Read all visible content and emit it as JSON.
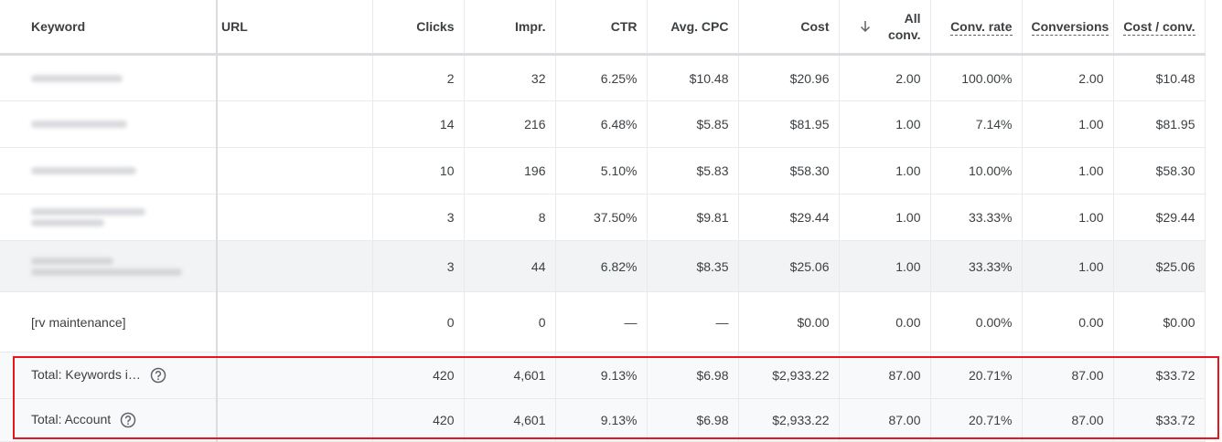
{
  "table": {
    "columns": [
      "Keyword",
      "URL",
      "Clicks",
      "Impr.",
      "CTR",
      "Avg. CPC",
      "Cost",
      "All conv.",
      "Conv. rate",
      "Conversions",
      "Cost / conv."
    ],
    "rows": [
      {
        "cells": [
          "2",
          "32",
          "6.25%",
          "$10.48",
          "$20.96",
          "2.00",
          "100.00%",
          "2.00",
          "$10.48"
        ]
      },
      {
        "cells": [
          "14",
          "216",
          "6.48%",
          "$5.85",
          "$81.95",
          "1.00",
          "7.14%",
          "1.00",
          "$81.95"
        ]
      },
      {
        "cells": [
          "10",
          "196",
          "5.10%",
          "$5.83",
          "$58.30",
          "1.00",
          "10.00%",
          "1.00",
          "$58.30"
        ]
      },
      {
        "cells": [
          "3",
          "8",
          "37.50%",
          "$9.81",
          "$29.44",
          "1.00",
          "33.33%",
          "1.00",
          "$29.44"
        ]
      },
      {
        "cells": [
          "3",
          "44",
          "6.82%",
          "$8.35",
          "$25.06",
          "1.00",
          "33.33%",
          "1.00",
          "$25.06"
        ]
      },
      {
        "keyword": "[rv maintenance]",
        "cells": [
          "0",
          "0",
          "—",
          "—",
          "$0.00",
          "0.00",
          "0.00%",
          "0.00",
          "$0.00"
        ]
      }
    ],
    "totals": [
      {
        "label": "Total: Keywords i…",
        "cells": [
          "420",
          "4,601",
          "9.13%",
          "$6.98",
          "$2,933.22",
          "87.00",
          "20.71%",
          "87.00",
          "$33.72"
        ]
      },
      {
        "label": "Total: Account",
        "cells": [
          "420",
          "4,601",
          "9.13%",
          "$6.98",
          "$2,933.22",
          "87.00",
          "20.71%",
          "87.00",
          "$33.72"
        ]
      }
    ]
  }
}
